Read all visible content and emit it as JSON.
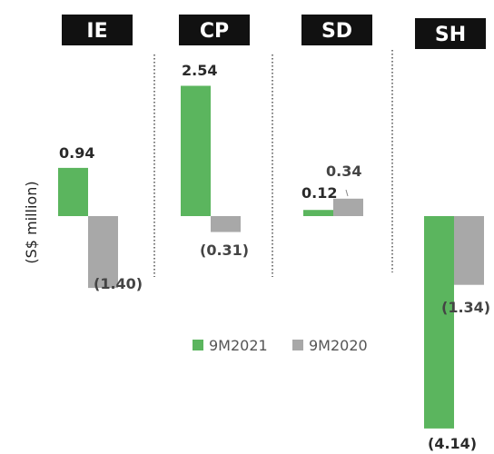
{
  "chart_data": {
    "type": "bar",
    "categories": [
      "IE",
      "CP",
      "SD",
      "SH"
    ],
    "series": [
      {
        "name": "9M2021",
        "values": [
          0.94,
          2.54,
          0.12,
          -4.14
        ],
        "labels": [
          "0.94",
          "2.54",
          "0.12",
          "(4.14)"
        ]
      },
      {
        "name": "9M2020",
        "values": [
          -1.4,
          -0.31,
          0.34,
          -1.34
        ],
        "labels": [
          "(1.40)",
          "(0.31)",
          "0.34",
          "(1.34)"
        ]
      }
    ],
    "ylabel": "(S$ million)",
    "ylim": [
      -4.14,
      2.54
    ],
    "colors": {
      "9M2021": "#5bb55e",
      "9M2020": "#a8a8a8"
    },
    "legend_position": "center",
    "grid": false
  }
}
